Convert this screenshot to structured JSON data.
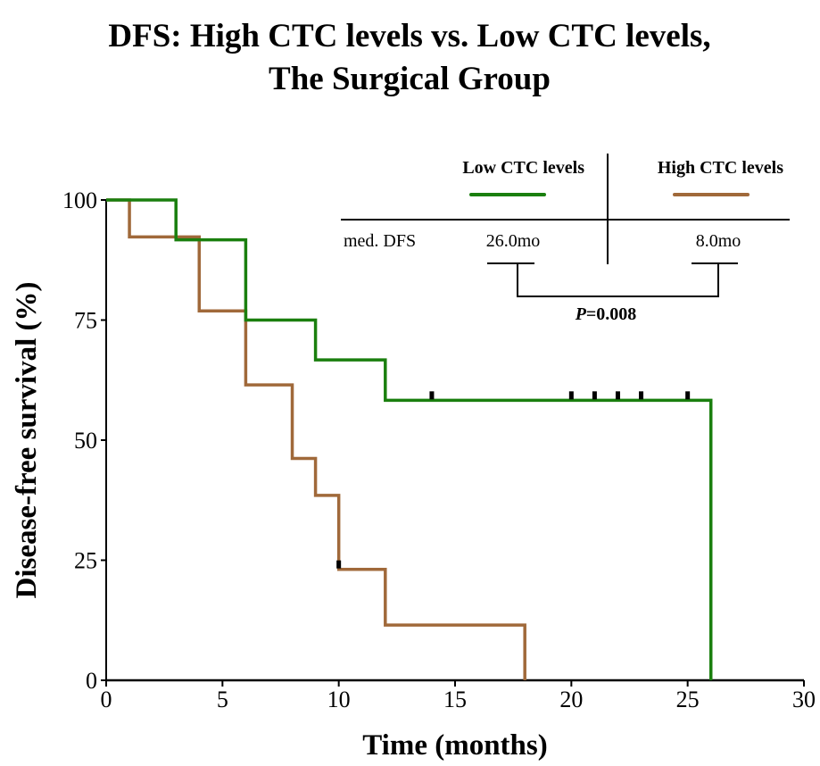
{
  "chart_data": {
    "type": "line",
    "subtype": "kaplan-meier-step",
    "title": [
      "DFS: High CTC levels vs. Low CTC levels,",
      "The Surgical Group"
    ],
    "xlabel": "Time (months)",
    "ylabel": "Disease-free survival (%)",
    "xlim": [
      0,
      30
    ],
    "ylim": [
      0,
      100
    ],
    "xticks": [
      0,
      5,
      10,
      15,
      20,
      25,
      30
    ],
    "yticks": [
      0,
      25,
      50,
      75,
      100
    ],
    "grid": false,
    "series": [
      {
        "name": "Low CTC levels",
        "color": "#1a7f0e",
        "steps": [
          {
            "x": 0,
            "y": 100
          },
          {
            "x": 3,
            "y": 91.7
          },
          {
            "x": 6,
            "y": 75.0
          },
          {
            "x": 9,
            "y": 66.7
          },
          {
            "x": 12,
            "y": 58.3
          },
          {
            "x": 26,
            "y": 0
          }
        ],
        "end_x": 26,
        "censored": [
          14,
          20,
          21,
          22,
          23,
          25
        ]
      },
      {
        "name": "High CTC levels",
        "color": "#a0693a",
        "steps": [
          {
            "x": 0,
            "y": 100
          },
          {
            "x": 1,
            "y": 92.3
          },
          {
            "x": 4,
            "y": 76.9
          },
          {
            "x": 6,
            "y": 61.5
          },
          {
            "x": 8,
            "y": 46.2
          },
          {
            "x": 9,
            "y": 38.5
          },
          {
            "x": 10,
            "y": 23.1
          },
          {
            "x": 12,
            "y": 11.5
          },
          {
            "x": 18,
            "y": 0
          }
        ],
        "end_x": 18,
        "censored": [
          10
        ]
      }
    ],
    "legend": {
      "placement": "top-right",
      "row_label": "med. DFS",
      "entries": [
        {
          "name": "Low CTC levels",
          "median": "26.0mo"
        },
        {
          "name": "High CTC levels",
          "median": "8.0mo"
        }
      ],
      "p_label": "P",
      "p_value": "=0.008"
    }
  }
}
